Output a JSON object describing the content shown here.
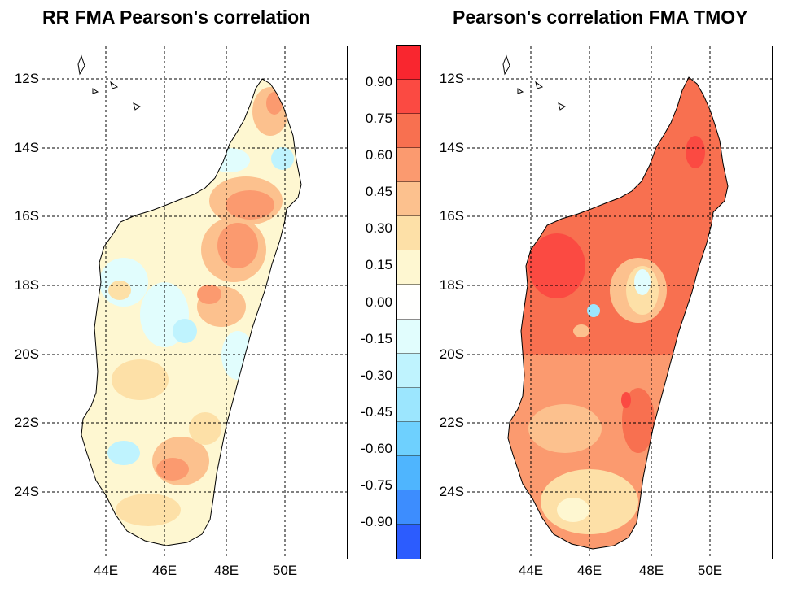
{
  "left_panel": {
    "title": "RR FMA Pearson's correlation"
  },
  "right_panel": {
    "title": "Pearson's correlation FMA TMOY"
  },
  "axes": {
    "lat_labels": [
      "12S",
      "14S",
      "16S",
      "18S",
      "20S",
      "22S",
      "24S"
    ],
    "lon_labels": [
      "44E",
      "46E",
      "48E",
      "50E"
    ]
  },
  "colorbar": {
    "labels": [
      "0.90",
      "0.75",
      "0.60",
      "0.45",
      "0.30",
      "0.15",
      "0.00",
      "-0.15",
      "-0.30",
      "-0.45",
      "-0.60",
      "-0.75",
      "-0.90"
    ],
    "colors": [
      "#f9262f",
      "#fb4a42",
      "#f87050",
      "#fb9a6f",
      "#fcc18e",
      "#fde0a7",
      "#fef7d1",
      "#fffffe",
      "#e1fdfd",
      "#bff3fe",
      "#9ce6fe",
      "#6ed0fe",
      "#4fb5fe",
      "#3d8dfe",
      "#2c5cfe"
    ]
  },
  "colors": {
    "grid": "#000000",
    "land_outline": "#000000"
  }
}
